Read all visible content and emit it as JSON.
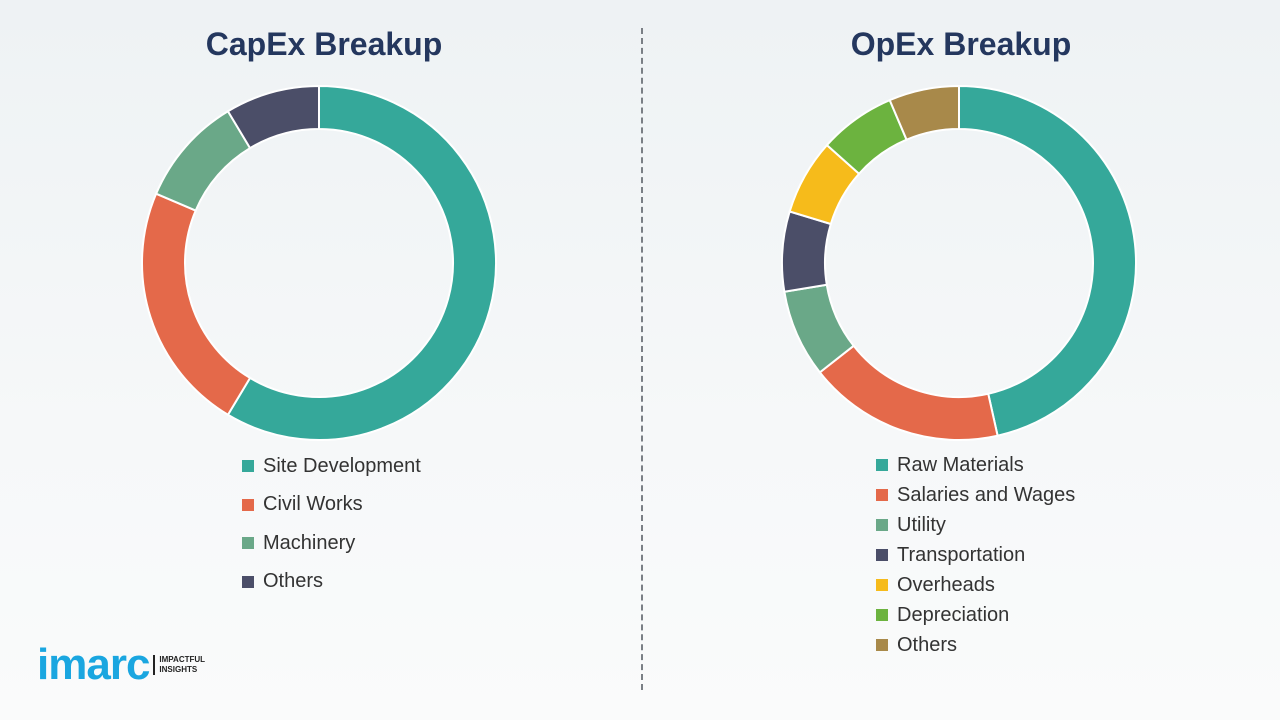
{
  "chart_data": [
    {
      "type": "pie",
      "title": "CapEx Breakup",
      "donut": true,
      "categories": [
        "Site Development",
        "Civil Works",
        "Machinery",
        "Others"
      ],
      "values": [
        58.6,
        22.8,
        10.0,
        8.6
      ],
      "colors": [
        "#35a89a",
        "#e4694a",
        "#6aa888",
        "#4b4e68"
      ],
      "legend": "bottom"
    },
    {
      "type": "pie",
      "title": "OpEx Breakup",
      "donut": true,
      "categories": [
        "Raw Materials",
        "Salaries and Wages",
        "Utility",
        "Transportation",
        "Overheads",
        "Depreciation",
        "Others"
      ],
      "values": [
        46.5,
        17.9,
        8.0,
        7.3,
        6.9,
        7.0,
        6.4
      ],
      "colors": [
        "#35a89a",
        "#e4694a",
        "#6aa888",
        "#4b4e68",
        "#f6bb1b",
        "#6cb33f",
        "#a8894a"
      ],
      "legend": "bottom"
    }
  ],
  "logo": {
    "word": "imarc",
    "tag1": "IMPACTFUL",
    "tag2": "INSIGHTS"
  }
}
